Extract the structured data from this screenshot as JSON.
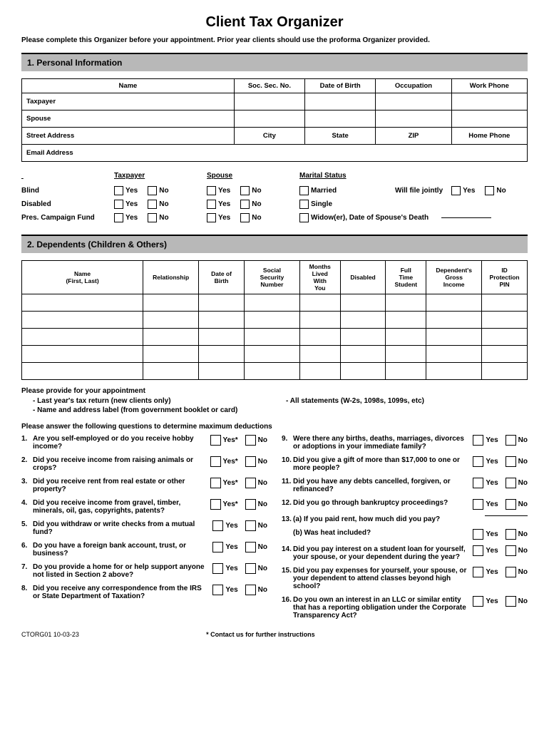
{
  "title": "Client Tax Organizer",
  "subtitle": "Please complete this Organizer before your appointment. Prior year clients should use the proforma Organizer provided.",
  "sections": {
    "s1": "1.  Personal Information",
    "s2": "2.  Dependents (Children & Others)"
  },
  "personal_table": {
    "headers": [
      "Name",
      "Soc. Sec. No.",
      "Date of Birth",
      "Occupation",
      "Work Phone"
    ],
    "rows": [
      "Taxpayer",
      "Spouse"
    ],
    "row2": [
      "Street Address",
      "City",
      "State",
      "ZIP",
      "Home Phone"
    ],
    "row3": "Email Address"
  },
  "checkboxes": {
    "col1_header": "",
    "col2_header": "Taxpayer",
    "col3_header": "Spouse",
    "col4_header": "Marital Status",
    "labels": [
      "Blind",
      "Disabled",
      "Pres. Campaign Fund"
    ],
    "yes": "Yes",
    "no": "No",
    "marital": [
      "Married",
      "Single",
      "Widow(er), Date of Spouse's Death"
    ],
    "jointly": "Will file jointly"
  },
  "dep_table": {
    "headers": [
      "Name\n(First, Last)",
      "Relationship",
      "Date of\nBirth",
      "Social\nSecurity\nNumber",
      "Months\nLived\nWith\nYou",
      "Disabled",
      "Full\nTime\nStudent",
      "Dependent's\nGross\nIncome",
      "ID\nProtection\nPIN"
    ],
    "row_count": 5,
    "col_widths": [
      "24%",
      "11%",
      "9%",
      "11%",
      "8%",
      "9%",
      "8%",
      "11%",
      "9%"
    ]
  },
  "appointment": {
    "title": "Please provide for your appointment",
    "left": [
      "-  Last year's tax return (new clients only)",
      "-  Name and address label (from government booklet or card)"
    ],
    "right": [
      "-  All statements (W-2s, 1098s, 1099s, etc)"
    ]
  },
  "questions_title": "Please answer the following questions to determine maximum deductions",
  "questions_left": [
    {
      "n": "1.",
      "t": "Are you self-employed or do you receive hobby income?",
      "aster": true
    },
    {
      "n": "2.",
      "t": "Did you receive income from raising animals or crops?",
      "aster": true
    },
    {
      "n": "3.",
      "t": "Did you receive rent from real estate or other property?",
      "aster": true
    },
    {
      "n": "4.",
      "t": "Did you receive income from gravel, timber, minerals, oil, gas, copyrights, patents?",
      "aster": true
    },
    {
      "n": "5.",
      "t": "Did you withdraw or write checks from a mutual fund?",
      "aster": false
    },
    {
      "n": "6.",
      "t": "Do you have a foreign bank account, trust, or business?",
      "aster": false
    },
    {
      "n": "7.",
      "t": "Do you provide a home for or help support anyone not listed in Section 2 above?",
      "aster": false
    },
    {
      "n": "8.",
      "t": "Did you receive any correspondence from the IRS or State Department of Taxation?",
      "aster": false
    }
  ],
  "questions_right": [
    {
      "n": "9.",
      "t": "Were there any births, deaths, marriages, divorces or adoptions in your immediate family?"
    },
    {
      "n": "10.",
      "t": "Did you give a gift of more than $17,000 to one or more people?"
    },
    {
      "n": "11.",
      "t": "Did you have any debts cancelled, forgiven, or refinanced?"
    },
    {
      "n": "12.",
      "t": "Did you go through bankruptcy proceedings?"
    },
    {
      "n": "13.",
      "t": "(a)  If you paid rent, how much did you pay?",
      "blank": true
    },
    {
      "n": "",
      "t": "(b)  Was heat included?"
    },
    {
      "n": "14.",
      "t": "Did you pay interest on a student loan for yourself, your spouse, or your dependent during the year?"
    },
    {
      "n": "15.",
      "t": "Did you pay expenses for yourself, your spouse, or your dependent to attend classes beyond high school?"
    },
    {
      "n": "16.",
      "t": "Do you own an interest in an LLC or similar entity that has a reporting obligation under the Corporate Transparency Act?"
    }
  ],
  "yes_label": "Yes",
  "no_label": "No",
  "footer": {
    "left": "CTORG01  10-03-23",
    "center": "*  Contact us for further instructions"
  },
  "colors": {
    "section_bg": "#b8b8b8",
    "border": "#000000"
  }
}
